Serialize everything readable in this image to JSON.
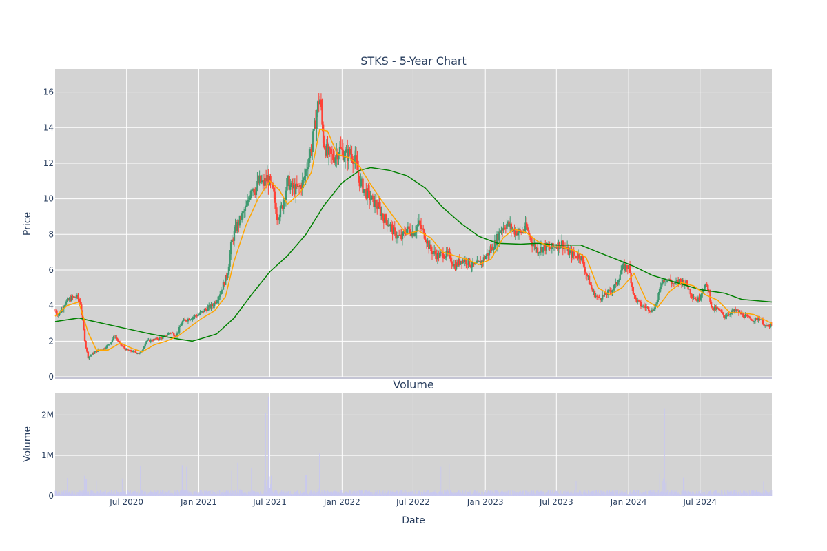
{
  "chart_data": [
    {
      "type": "candlestick",
      "title": "STKS - 5-Year Chart",
      "ylabel": "Price",
      "ylim": [
        0,
        17.3
      ],
      "yticks": [
        0,
        2,
        4,
        6,
        8,
        10,
        12,
        14,
        16
      ],
      "x_range": [
        "2020-01-01",
        "2024-12-31"
      ],
      "colors": {
        "up": "#3d9970",
        "down": "#ff4136",
        "ma_short": "#ffa500",
        "ma_long": "#008000",
        "plot_bg": "#d3d3d3",
        "grid": "#ffffff"
      },
      "price_path": [
        [
          "2020-01-01",
          3.7
        ],
        [
          "2020-01-10",
          3.5
        ],
        [
          "2020-01-25",
          4.1
        ],
        [
          "2020-02-10",
          4.4
        ],
        [
          "2020-02-25",
          4.5
        ],
        [
          "2020-03-05",
          4.2
        ],
        [
          "2020-03-12",
          3.0
        ],
        [
          "2020-03-18",
          1.8
        ],
        [
          "2020-03-25",
          1.1
        ],
        [
          "2020-04-05",
          1.3
        ],
        [
          "2020-04-20",
          1.5
        ],
        [
          "2020-05-05",
          1.6
        ],
        [
          "2020-05-20",
          1.9
        ],
        [
          "2020-06-01",
          2.3
        ],
        [
          "2020-06-15",
          1.8
        ],
        [
          "2020-07-01",
          1.5
        ],
        [
          "2020-07-20",
          1.4
        ],
        [
          "2020-08-05",
          1.3
        ],
        [
          "2020-08-20",
          2.0
        ],
        [
          "2020-09-10",
          2.1
        ],
        [
          "2020-10-01",
          2.2
        ],
        [
          "2020-10-20",
          2.5
        ],
        [
          "2020-11-05",
          2.3
        ],
        [
          "2020-11-20",
          3.1
        ],
        [
          "2020-12-10",
          3.3
        ],
        [
          "2021-01-01",
          3.5
        ],
        [
          "2021-01-20",
          3.8
        ],
        [
          "2021-02-05",
          4.0
        ],
        [
          "2021-02-20",
          4.5
        ],
        [
          "2021-03-05",
          5.2
        ],
        [
          "2021-03-15",
          5.8
        ],
        [
          "2021-03-25",
          7.5
        ],
        [
          "2021-04-05",
          8.3
        ],
        [
          "2021-04-20",
          9.0
        ],
        [
          "2021-05-05",
          9.6
        ],
        [
          "2021-05-15",
          10.8
        ],
        [
          "2021-05-25",
          10.5
        ],
        [
          "2021-06-05",
          11.0
        ],
        [
          "2021-06-15",
          10.8
        ],
        [
          "2021-06-25",
          11.2
        ],
        [
          "2021-07-10",
          10.3
        ],
        [
          "2021-07-20",
          9.0
        ],
        [
          "2021-08-01",
          9.5
        ],
        [
          "2021-08-15",
          11.0
        ],
        [
          "2021-08-25",
          10.6
        ],
        [
          "2021-09-10",
          10.5
        ],
        [
          "2021-09-25",
          11.0
        ],
        [
          "2021-10-10",
          12.5
        ],
        [
          "2021-10-20",
          13.5
        ],
        [
          "2021-10-28",
          14.8
        ],
        [
          "2021-11-05",
          15.8
        ],
        [
          "2021-11-15",
          13.2
        ],
        [
          "2021-11-25",
          12.5
        ],
        [
          "2021-12-10",
          12.3
        ],
        [
          "2021-12-25",
          12.8
        ],
        [
          "2022-01-10",
          12.4
        ],
        [
          "2022-01-25",
          12.6
        ],
        [
          "2022-02-05",
          12.0
        ],
        [
          "2022-02-15",
          11.0
        ],
        [
          "2022-03-01",
          10.4
        ],
        [
          "2022-03-15",
          10.0
        ],
        [
          "2022-04-01",
          9.6
        ],
        [
          "2022-04-15",
          9.0
        ],
        [
          "2022-05-01",
          8.6
        ],
        [
          "2022-05-15",
          8.0
        ],
        [
          "2022-06-01",
          7.8
        ],
        [
          "2022-06-15",
          8.3
        ],
        [
          "2022-07-01",
          8.1
        ],
        [
          "2022-07-15",
          8.6
        ],
        [
          "2022-08-01",
          7.9
        ],
        [
          "2022-08-15",
          7.1
        ],
        [
          "2022-09-01",
          6.8
        ],
        [
          "2022-09-15",
          6.9
        ],
        [
          "2022-10-01",
          6.8
        ],
        [
          "2022-10-15",
          6.2
        ],
        [
          "2022-11-01",
          6.6
        ],
        [
          "2022-11-15",
          6.5
        ],
        [
          "2022-12-01",
          6.2
        ],
        [
          "2022-12-20",
          6.4
        ],
        [
          "2023-01-10",
          7.0
        ],
        [
          "2023-01-25",
          7.5
        ],
        [
          "2023-02-10",
          8.3
        ],
        [
          "2023-02-25",
          8.6
        ],
        [
          "2023-03-15",
          8.2
        ],
        [
          "2023-04-01",
          8.1
        ],
        [
          "2023-04-15",
          8.4
        ],
        [
          "2023-05-01",
          7.5
        ],
        [
          "2023-05-15",
          7.1
        ],
        [
          "2023-06-01",
          7.3
        ],
        [
          "2023-06-15",
          7.2
        ],
        [
          "2023-07-01",
          7.4
        ],
        [
          "2023-07-15",
          7.5
        ],
        [
          "2023-08-01",
          7.0
        ],
        [
          "2023-08-15",
          6.8
        ],
        [
          "2023-09-01",
          6.8
        ],
        [
          "2023-09-15",
          5.8
        ],
        [
          "2023-10-01",
          4.8
        ],
        [
          "2023-10-15",
          4.4
        ],
        [
          "2023-11-01",
          4.6
        ],
        [
          "2023-11-15",
          4.8
        ],
        [
          "2023-12-01",
          5.2
        ],
        [
          "2023-12-15",
          6.1
        ],
        [
          "2024-01-01",
          6.2
        ],
        [
          "2024-01-15",
          4.5
        ],
        [
          "2024-02-01",
          4.0
        ],
        [
          "2024-02-15",
          3.9
        ],
        [
          "2024-03-01",
          3.7
        ],
        [
          "2024-03-15",
          4.3
        ],
        [
          "2024-03-25",
          5.4
        ],
        [
          "2024-04-10",
          5.5
        ],
        [
          "2024-04-25",
          5.2
        ],
        [
          "2024-05-10",
          5.4
        ],
        [
          "2024-05-25",
          5.3
        ],
        [
          "2024-06-10",
          4.6
        ],
        [
          "2024-06-25",
          4.3
        ],
        [
          "2024-07-10",
          5.0
        ],
        [
          "2024-07-20",
          5.1
        ],
        [
          "2024-08-01",
          3.8
        ],
        [
          "2024-08-15",
          3.8
        ],
        [
          "2024-09-01",
          3.4
        ],
        [
          "2024-09-15",
          3.6
        ],
        [
          "2024-10-01",
          3.7
        ],
        [
          "2024-10-15",
          3.5
        ],
        [
          "2024-11-01",
          3.3
        ],
        [
          "2024-11-15",
          3.2
        ],
        [
          "2024-12-01",
          3.3
        ],
        [
          "2024-12-15",
          2.8
        ],
        [
          "2024-12-31",
          2.9
        ]
      ],
      "ma_short_series": [
        [
          "2020-01-01",
          3.4
        ],
        [
          "2020-02-01",
          4.0
        ],
        [
          "2020-03-01",
          4.2
        ],
        [
          "2020-03-25",
          2.5
        ],
        [
          "2020-04-15",
          1.5
        ],
        [
          "2020-05-15",
          1.5
        ],
        [
          "2020-06-15",
          1.9
        ],
        [
          "2020-07-15",
          1.6
        ],
        [
          "2020-08-10",
          1.4
        ],
        [
          "2020-09-10",
          1.8
        ],
        [
          "2020-10-10",
          2.0
        ],
        [
          "2020-11-10",
          2.3
        ],
        [
          "2020-12-10",
          2.8
        ],
        [
          "2021-01-10",
          3.3
        ],
        [
          "2021-02-10",
          3.7
        ],
        [
          "2021-03-10",
          4.5
        ],
        [
          "2021-04-01",
          6.5
        ],
        [
          "2021-05-01",
          8.5
        ],
        [
          "2021-06-01",
          10.0
        ],
        [
          "2021-07-01",
          11.0
        ],
        [
          "2021-07-25",
          10.5
        ],
        [
          "2021-08-15",
          9.7
        ],
        [
          "2021-09-15",
          10.3
        ],
        [
          "2021-10-15",
          11.5
        ],
        [
          "2021-11-05",
          13.9
        ],
        [
          "2021-11-25",
          13.8
        ],
        [
          "2021-12-20",
          12.5
        ],
        [
          "2022-01-20",
          12.3
        ],
        [
          "2022-02-15",
          11.8
        ],
        [
          "2022-03-15",
          10.8
        ],
        [
          "2022-04-15",
          9.8
        ],
        [
          "2022-05-15",
          8.9
        ],
        [
          "2022-06-15",
          8.0
        ],
        [
          "2022-07-15",
          8.2
        ],
        [
          "2022-08-15",
          7.8
        ],
        [
          "2022-09-15",
          7.0
        ],
        [
          "2022-10-15",
          6.8
        ],
        [
          "2022-11-15",
          6.6
        ],
        [
          "2022-12-15",
          6.3
        ],
        [
          "2023-01-15",
          6.6
        ],
        [
          "2023-02-15",
          7.8
        ],
        [
          "2023-03-15",
          8.3
        ],
        [
          "2023-04-15",
          8.1
        ],
        [
          "2023-05-15",
          7.6
        ],
        [
          "2023-06-15",
          7.3
        ],
        [
          "2023-07-15",
          7.3
        ],
        [
          "2023-08-15",
          7.1
        ],
        [
          "2023-09-15",
          6.7
        ],
        [
          "2023-10-15",
          5.0
        ],
        [
          "2023-11-15",
          4.6
        ],
        [
          "2023-12-15",
          5.0
        ],
        [
          "2024-01-15",
          5.8
        ],
        [
          "2024-02-15",
          4.3
        ],
        [
          "2024-03-15",
          3.9
        ],
        [
          "2024-04-15",
          4.8
        ],
        [
          "2024-05-15",
          5.3
        ],
        [
          "2024-06-15",
          5.1
        ],
        [
          "2024-07-15",
          4.6
        ],
        [
          "2024-08-15",
          4.3
        ],
        [
          "2024-09-15",
          3.6
        ],
        [
          "2024-10-15",
          3.6
        ],
        [
          "2024-11-15",
          3.5
        ],
        [
          "2024-12-31",
          3.0
        ]
      ],
      "ma_long_series": [
        [
          "2020-01-01",
          3.1
        ],
        [
          "2020-03-01",
          3.3
        ],
        [
          "2020-05-01",
          3.0
        ],
        [
          "2020-07-01",
          2.7
        ],
        [
          "2020-09-01",
          2.4
        ],
        [
          "2020-11-01",
          2.15
        ],
        [
          "2020-12-15",
          2.0
        ],
        [
          "2021-01-01",
          2.1
        ],
        [
          "2021-02-15",
          2.4
        ],
        [
          "2021-04-01",
          3.3
        ],
        [
          "2021-05-15",
          4.6
        ],
        [
          "2021-07-01",
          5.9
        ],
        [
          "2021-08-15",
          6.8
        ],
        [
          "2021-10-01",
          8.0
        ],
        [
          "2021-11-15",
          9.6
        ],
        [
          "2022-01-01",
          10.9
        ],
        [
          "2022-02-15",
          11.6
        ],
        [
          "2022-03-15",
          11.75
        ],
        [
          "2022-05-01",
          11.6
        ],
        [
          "2022-06-15",
          11.3
        ],
        [
          "2022-08-01",
          10.6
        ],
        [
          "2022-09-15",
          9.5
        ],
        [
          "2022-11-01",
          8.6
        ],
        [
          "2022-12-15",
          7.9
        ],
        [
          "2023-02-01",
          7.5
        ],
        [
          "2023-04-01",
          7.45
        ],
        [
          "2023-05-15",
          7.5
        ],
        [
          "2023-07-01",
          7.4
        ],
        [
          "2023-09-01",
          7.4
        ],
        [
          "2023-10-15",
          7.0
        ],
        [
          "2023-12-01",
          6.6
        ],
        [
          "2024-01-15",
          6.2
        ],
        [
          "2024-03-01",
          5.7
        ],
        [
          "2024-05-01",
          5.3
        ],
        [
          "2024-07-01",
          4.9
        ],
        [
          "2024-09-01",
          4.7
        ],
        [
          "2024-10-15",
          4.35
        ],
        [
          "2024-12-31",
          4.2
        ]
      ]
    },
    {
      "type": "bar",
      "title": "Volume",
      "xlabel": "Date",
      "ylabel": "Volume",
      "ylim": [
        0,
        2550000
      ],
      "yticks": [
        0,
        1000000,
        2000000
      ],
      "ytick_labels": [
        "0",
        "1M",
        "2M"
      ],
      "xticks": [
        "2020-07-01",
        "2021-01-01",
        "2021-07-01",
        "2022-01-01",
        "2022-07-01",
        "2023-01-01",
        "2023-07-01",
        "2024-01-01",
        "2024-07-01"
      ],
      "xtick_labels": [
        "Jul 2020",
        "Jan 2021",
        "Jul 2021",
        "Jan 2022",
        "Jul 2022",
        "Jan 2023",
        "Jul 2023",
        "Jan 2024",
        "Jul 2024"
      ],
      "bar_color": "#c8c8f0",
      "baseline": 90000,
      "spikes": [
        [
          "2020-02-01",
          440000
        ],
        [
          "2020-03-15",
          500000
        ],
        [
          "2020-03-20",
          420000
        ],
        [
          "2020-04-15",
          380000
        ],
        [
          "2020-06-20",
          430000
        ],
        [
          "2020-08-05",
          750000
        ],
        [
          "2020-11-20",
          760000
        ],
        [
          "2020-12-01",
          720000
        ],
        [
          "2021-03-25",
          620000
        ],
        [
          "2021-04-10",
          820000
        ],
        [
          "2021-05-15",
          700000
        ],
        [
          "2021-06-20",
          2050000
        ],
        [
          "2021-06-28",
          2450000
        ],
        [
          "2021-07-05",
          500000
        ],
        [
          "2021-10-01",
          520000
        ],
        [
          "2021-11-05",
          1050000
        ],
        [
          "2022-09-10",
          720000
        ],
        [
          "2022-10-01",
          800000
        ],
        [
          "2023-08-20",
          360000
        ],
        [
          "2024-03-20",
          550000
        ],
        [
          "2024-04-01",
          2150000
        ],
        [
          "2024-05-20",
          450000
        ],
        [
          "2024-12-10",
          350000
        ]
      ]
    }
  ]
}
